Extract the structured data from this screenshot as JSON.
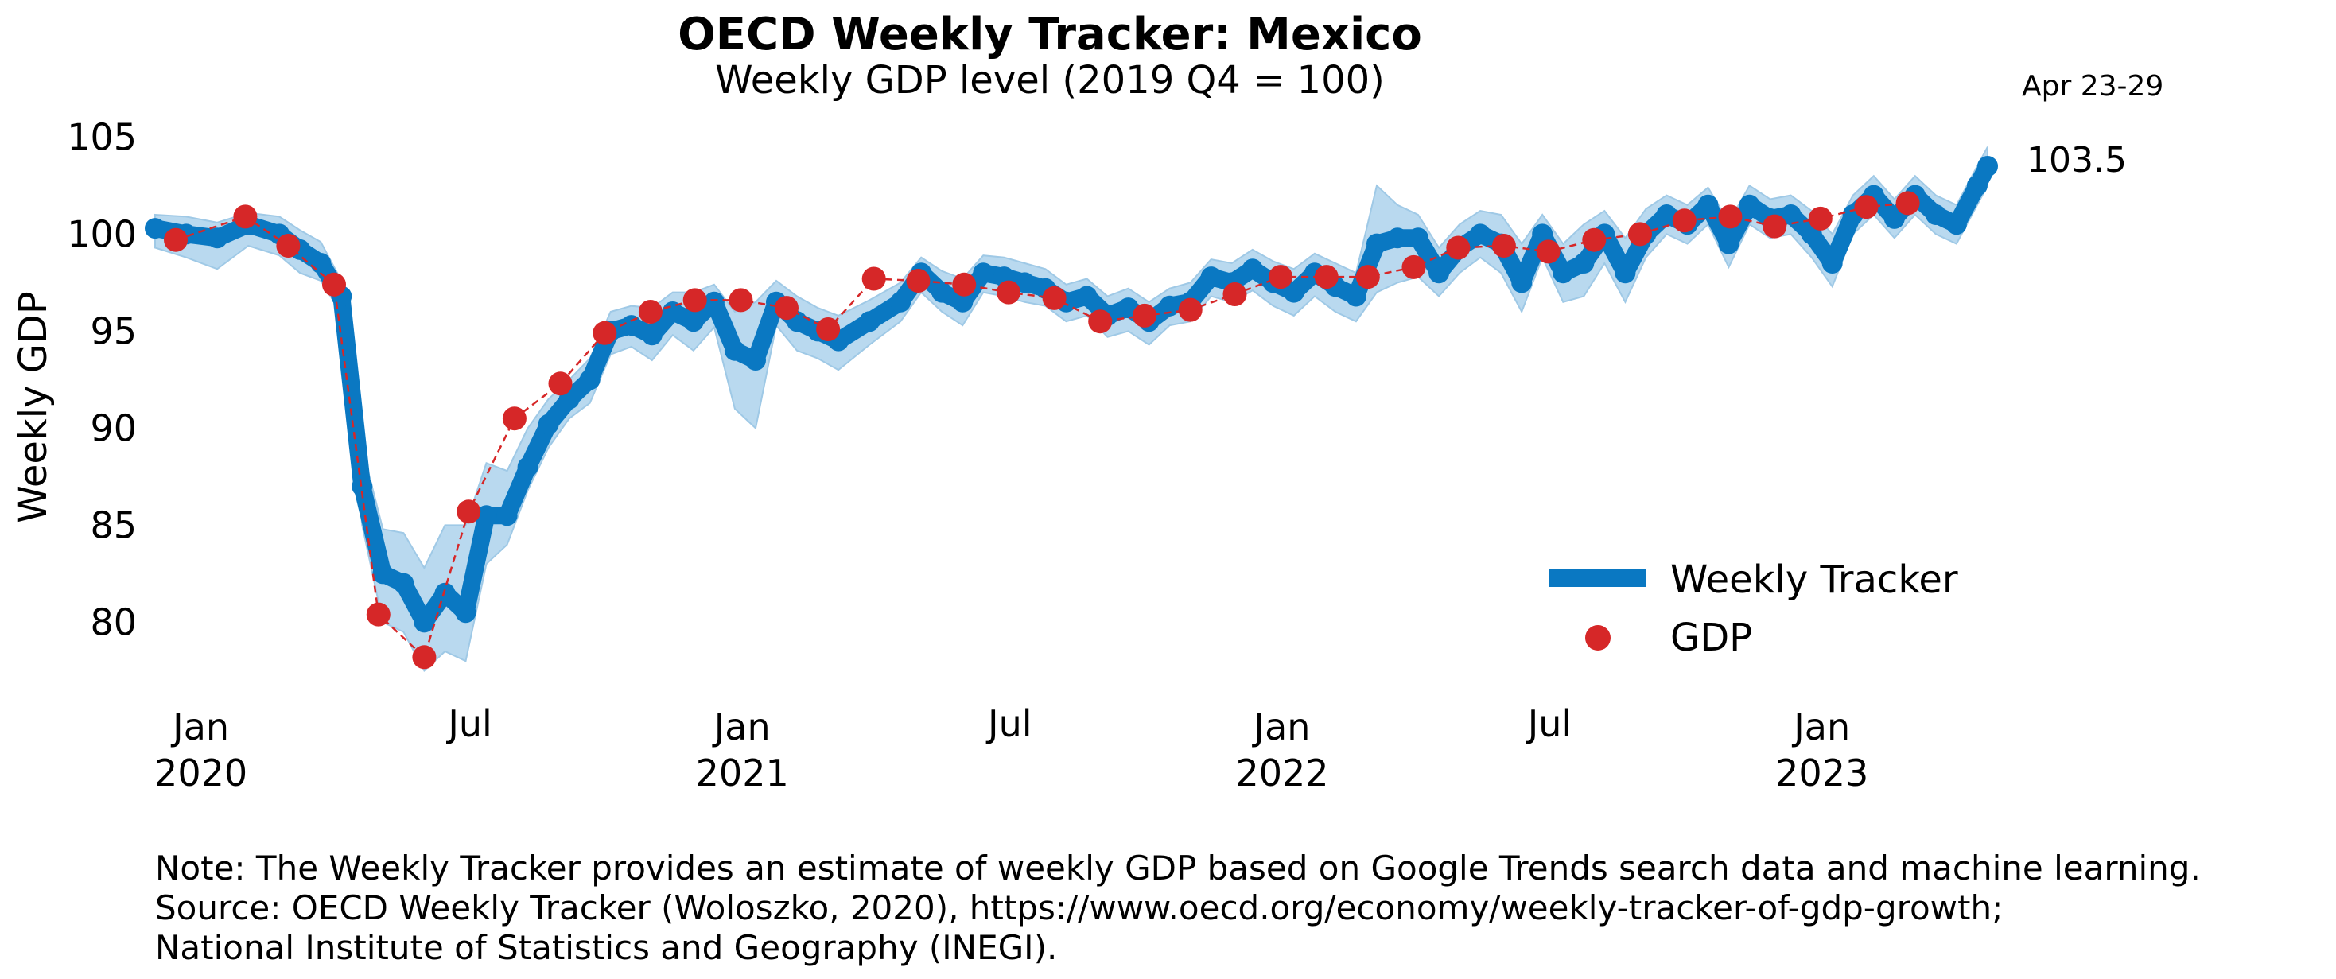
{
  "chart_data": {
    "type": "line",
    "title": "OECD Weekly Tracker: Mexico",
    "subtitle": "Weekly GDP level (2019 Q4 = 100)",
    "ylabel": "Weekly GDP",
    "xlabel": "",
    "ylim": [
      76,
      106
    ],
    "xlim": [
      "2019-12-01",
      "2023-05-07"
    ],
    "yticks": [
      80,
      85,
      90,
      95,
      100,
      105
    ],
    "xticks": [
      {
        "date": "2020-01-01",
        "label": "Jan",
        "year": "2020"
      },
      {
        "date": "2020-07-01",
        "label": "Jul",
        "year": ""
      },
      {
        "date": "2021-01-01",
        "label": "Jan",
        "year": "2021"
      },
      {
        "date": "2021-07-01",
        "label": "Jul",
        "year": ""
      },
      {
        "date": "2022-01-01",
        "label": "Jan",
        "year": "2022"
      },
      {
        "date": "2022-07-01",
        "label": "Jul",
        "year": ""
      },
      {
        "date": "2023-01-01",
        "label": "Jan",
        "year": "2023"
      }
    ],
    "grid": false,
    "legend_position": "bottom-right",
    "colors": {
      "tracker": "#0a78c2",
      "band": "#b9d9ef",
      "gdp": "#d62728"
    },
    "series": [
      {
        "name": "Weekly Tracker",
        "style": "thick-line-with-confidence-band",
        "points": [
          [
            "2019-12-01",
            100.3,
            99.3,
            101.0
          ],
          [
            "2019-12-22",
            100.0,
            98.8,
            100.9
          ],
          [
            "2020-01-12",
            99.8,
            98.2,
            100.6
          ],
          [
            "2020-02-02",
            100.5,
            99.4,
            101.1
          ],
          [
            "2020-02-23",
            100.0,
            98.9,
            100.9
          ],
          [
            "2020-03-08",
            99.2,
            98.0,
            100.2
          ],
          [
            "2020-03-22",
            98.5,
            97.6,
            99.6
          ],
          [
            "2020-04-05",
            96.8,
            95.9,
            97.6
          ],
          [
            "2020-04-19",
            87.0,
            85.0,
            89.0
          ],
          [
            "2020-05-03",
            82.5,
            80.0,
            84.8
          ],
          [
            "2020-05-17",
            82.0,
            79.5,
            84.6
          ],
          [
            "2020-05-31",
            80.0,
            77.5,
            82.8
          ],
          [
            "2020-06-14",
            81.5,
            78.5,
            85.0
          ],
          [
            "2020-06-28",
            80.5,
            78.0,
            85.0
          ],
          [
            "2020-07-12",
            85.5,
            83.0,
            88.2
          ],
          [
            "2020-07-26",
            85.5,
            84.0,
            87.8
          ],
          [
            "2020-08-09",
            88.0,
            86.8,
            90.0
          ],
          [
            "2020-08-23",
            90.2,
            89.0,
            91.5
          ],
          [
            "2020-09-06",
            91.5,
            90.5,
            92.5
          ],
          [
            "2020-09-20",
            92.5,
            91.3,
            93.6
          ],
          [
            "2020-10-04",
            95.0,
            93.8,
            96.0
          ],
          [
            "2020-10-18",
            95.3,
            94.2,
            96.3
          ],
          [
            "2020-11-01",
            94.8,
            93.5,
            96.2
          ],
          [
            "2020-11-15",
            96.0,
            94.8,
            97.0
          ],
          [
            "2020-11-29",
            95.5,
            94.0,
            97.0
          ],
          [
            "2020-12-13",
            96.5,
            95.2,
            97.4
          ],
          [
            "2020-12-27",
            94.0,
            91.0,
            96.0
          ],
          [
            "2021-01-10",
            93.5,
            90.0,
            96.5
          ],
          [
            "2021-01-24",
            96.5,
            95.3,
            97.6
          ],
          [
            "2021-02-07",
            95.5,
            94.0,
            96.8
          ],
          [
            "2021-02-21",
            95.0,
            93.6,
            96.2
          ],
          [
            "2021-03-07",
            94.5,
            93.0,
            95.8
          ],
          [
            "2021-03-28",
            95.5,
            94.3,
            96.6
          ],
          [
            "2021-04-18",
            96.5,
            95.5,
            97.5
          ],
          [
            "2021-05-02",
            98.0,
            97.0,
            98.8
          ],
          [
            "2021-05-16",
            97.0,
            96.0,
            98.1
          ],
          [
            "2021-05-30",
            96.5,
            95.3,
            97.7
          ],
          [
            "2021-06-13",
            98.0,
            97.0,
            98.9
          ],
          [
            "2021-06-27",
            97.8,
            96.8,
            98.8
          ],
          [
            "2021-07-11",
            97.5,
            96.5,
            98.5
          ],
          [
            "2021-07-25",
            97.2,
            96.3,
            98.2
          ],
          [
            "2021-08-08",
            96.5,
            95.5,
            97.4
          ],
          [
            "2021-08-22",
            96.8,
            95.8,
            97.7
          ],
          [
            "2021-09-05",
            95.8,
            94.7,
            96.8
          ],
          [
            "2021-09-19",
            96.2,
            95.0,
            97.2
          ],
          [
            "2021-10-03",
            95.5,
            94.3,
            96.5
          ],
          [
            "2021-10-17",
            96.3,
            95.3,
            97.2
          ],
          [
            "2021-10-31",
            96.5,
            95.5,
            97.5
          ],
          [
            "2021-11-14",
            97.8,
            96.8,
            98.7
          ],
          [
            "2021-11-28",
            97.5,
            96.5,
            98.5
          ],
          [
            "2021-12-12",
            98.2,
            97.1,
            99.2
          ],
          [
            "2021-12-26",
            97.5,
            96.3,
            98.6
          ],
          [
            "2022-01-09",
            97.0,
            95.8,
            98.2
          ],
          [
            "2022-01-23",
            98.0,
            96.8,
            99.0
          ],
          [
            "2022-02-06",
            97.3,
            96.0,
            98.5
          ],
          [
            "2022-02-20",
            96.8,
            95.5,
            98.0
          ],
          [
            "2022-03-06",
            99.5,
            97.0,
            102.5
          ],
          [
            "2022-03-20",
            99.8,
            97.5,
            101.5
          ],
          [
            "2022-04-03",
            99.8,
            97.8,
            101.0
          ],
          [
            "2022-04-17",
            98.0,
            96.8,
            99.3
          ],
          [
            "2022-05-01",
            99.3,
            98.0,
            100.5
          ],
          [
            "2022-05-15",
            100.0,
            98.8,
            101.2
          ],
          [
            "2022-05-29",
            99.5,
            98.0,
            101.0
          ],
          [
            "2022-06-12",
            97.5,
            96.0,
            99.5
          ],
          [
            "2022-06-26",
            100.0,
            98.8,
            101.0
          ],
          [
            "2022-07-10",
            98.0,
            96.5,
            99.5
          ],
          [
            "2022-07-24",
            98.5,
            96.8,
            100.5
          ],
          [
            "2022-08-07",
            100.0,
            98.5,
            101.2
          ],
          [
            "2022-08-21",
            98.0,
            96.5,
            99.8
          ],
          [
            "2022-09-04",
            100.0,
            98.8,
            101.3
          ],
          [
            "2022-09-18",
            101.0,
            100.0,
            102.0
          ],
          [
            "2022-10-02",
            100.5,
            99.5,
            101.5
          ],
          [
            "2022-10-16",
            101.5,
            100.5,
            102.4
          ],
          [
            "2022-10-30",
            99.5,
            98.3,
            100.6
          ],
          [
            "2022-11-13",
            101.5,
            100.5,
            102.5
          ],
          [
            "2022-11-27",
            100.8,
            99.8,
            101.8
          ],
          [
            "2022-12-11",
            101.0,
            100.0,
            102.0
          ],
          [
            "2022-12-25",
            100.0,
            98.8,
            101.2
          ],
          [
            "2023-01-08",
            98.5,
            97.3,
            100.0
          ],
          [
            "2023-01-22",
            101.0,
            100.0,
            102.0
          ],
          [
            "2023-02-05",
            102.0,
            101.0,
            103.0
          ],
          [
            "2023-02-19",
            100.8,
            99.8,
            101.8
          ],
          [
            "2023-03-05",
            102.0,
            101.0,
            103.0
          ],
          [
            "2023-03-19",
            101.0,
            100.0,
            102.0
          ],
          [
            "2023-04-02",
            100.5,
            99.5,
            101.5
          ],
          [
            "2023-04-16",
            102.5,
            101.5,
            103.5
          ],
          [
            "2023-04-23",
            103.5,
            102.5,
            104.5
          ]
        ]
      },
      {
        "name": "GDP",
        "style": "markers-with-dashed-line",
        "points": [
          [
            "2019-12-15",
            99.7
          ],
          [
            "2020-01-31",
            100.9
          ],
          [
            "2020-02-29",
            99.4
          ],
          [
            "2020-03-31",
            97.4
          ],
          [
            "2020-04-30",
            80.4
          ],
          [
            "2020-05-31",
            78.2
          ],
          [
            "2020-06-30",
            85.7
          ],
          [
            "2020-07-31",
            90.5
          ],
          [
            "2020-08-31",
            92.3
          ],
          [
            "2020-09-30",
            94.9
          ],
          [
            "2020-10-31",
            96.0
          ],
          [
            "2020-11-30",
            96.6
          ],
          [
            "2020-12-31",
            96.6
          ],
          [
            "2021-01-31",
            96.2
          ],
          [
            "2021-02-28",
            95.1
          ],
          [
            "2021-03-31",
            97.7
          ],
          [
            "2021-04-30",
            97.6
          ],
          [
            "2021-05-31",
            97.4
          ],
          [
            "2021-06-30",
            97.0
          ],
          [
            "2021-07-31",
            96.7
          ],
          [
            "2021-08-31",
            95.5
          ],
          [
            "2021-09-30",
            95.8
          ],
          [
            "2021-10-31",
            96.1
          ],
          [
            "2021-11-30",
            96.9
          ],
          [
            "2021-12-31",
            97.8
          ],
          [
            "2022-01-31",
            97.8
          ],
          [
            "2022-02-28",
            97.8
          ],
          [
            "2022-03-31",
            98.3
          ],
          [
            "2022-04-30",
            99.3
          ],
          [
            "2022-05-31",
            99.4
          ],
          [
            "2022-06-30",
            99.1
          ],
          [
            "2022-07-31",
            99.7
          ],
          [
            "2022-08-31",
            100.0
          ],
          [
            "2022-09-30",
            100.7
          ],
          [
            "2022-10-31",
            100.9
          ],
          [
            "2022-11-30",
            100.4
          ],
          [
            "2022-12-31",
            100.8
          ],
          [
            "2023-01-31",
            101.4
          ],
          [
            "2023-02-28",
            101.6
          ]
        ]
      }
    ],
    "annotations": {
      "last_week_label": "Apr 23-29",
      "last_value_label": "103.5"
    },
    "legend": [
      "Weekly Tracker",
      "GDP"
    ],
    "note_lines": [
      "Note: The Weekly Tracker provides an estimate of weekly GDP based on Google Trends search data and machine learning.",
      "Source: OECD Weekly Tracker (Woloszko, 2020), https://www.oecd.org/economy/weekly-tracker-of-gdp-growth;",
      "National Institute of Statistics and Geography (INEGI)."
    ]
  }
}
